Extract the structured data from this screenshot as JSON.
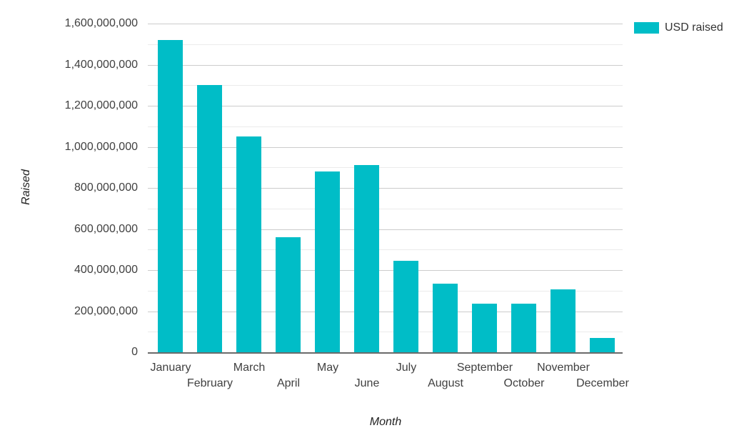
{
  "chart_data": {
    "type": "bar",
    "title": "",
    "categories": [
      "January",
      "February",
      "March",
      "April",
      "May",
      "June",
      "July",
      "August",
      "September",
      "October",
      "November",
      "December"
    ],
    "series": [
      {
        "name": "USD raised",
        "color": "#00BDC7",
        "values": [
          1520000000,
          1300000000,
          1050000000,
          560000000,
          880000000,
          910000000,
          445000000,
          335000000,
          235000000,
          235000000,
          305000000,
          70000000
        ]
      }
    ],
    "xlabel": "Month",
    "ylabel": "Raised",
    "ylim": [
      0,
      1600000000
    ],
    "y_major_step": 200000000,
    "y_minor_step": 100000000,
    "y_tick_labels": [
      "0",
      "200,000,000",
      "400,000,000",
      "600,000,000",
      "800,000,000",
      "1,000,000,000",
      "1,200,000,000",
      "1,400,000,000",
      "1,600,000,000"
    ],
    "grid": true,
    "legend_position": "top-right",
    "x_label_rows": "staggered"
  },
  "axes": {
    "y_title": "Raised",
    "x_title": "Month"
  },
  "colors": {
    "bar": "#00BDC7",
    "grid_major": "#cccccc",
    "grid_minor": "#ebebeb",
    "axis_line": "#6b6b6b",
    "tick_text": "#404040",
    "title_text": "#222222"
  }
}
